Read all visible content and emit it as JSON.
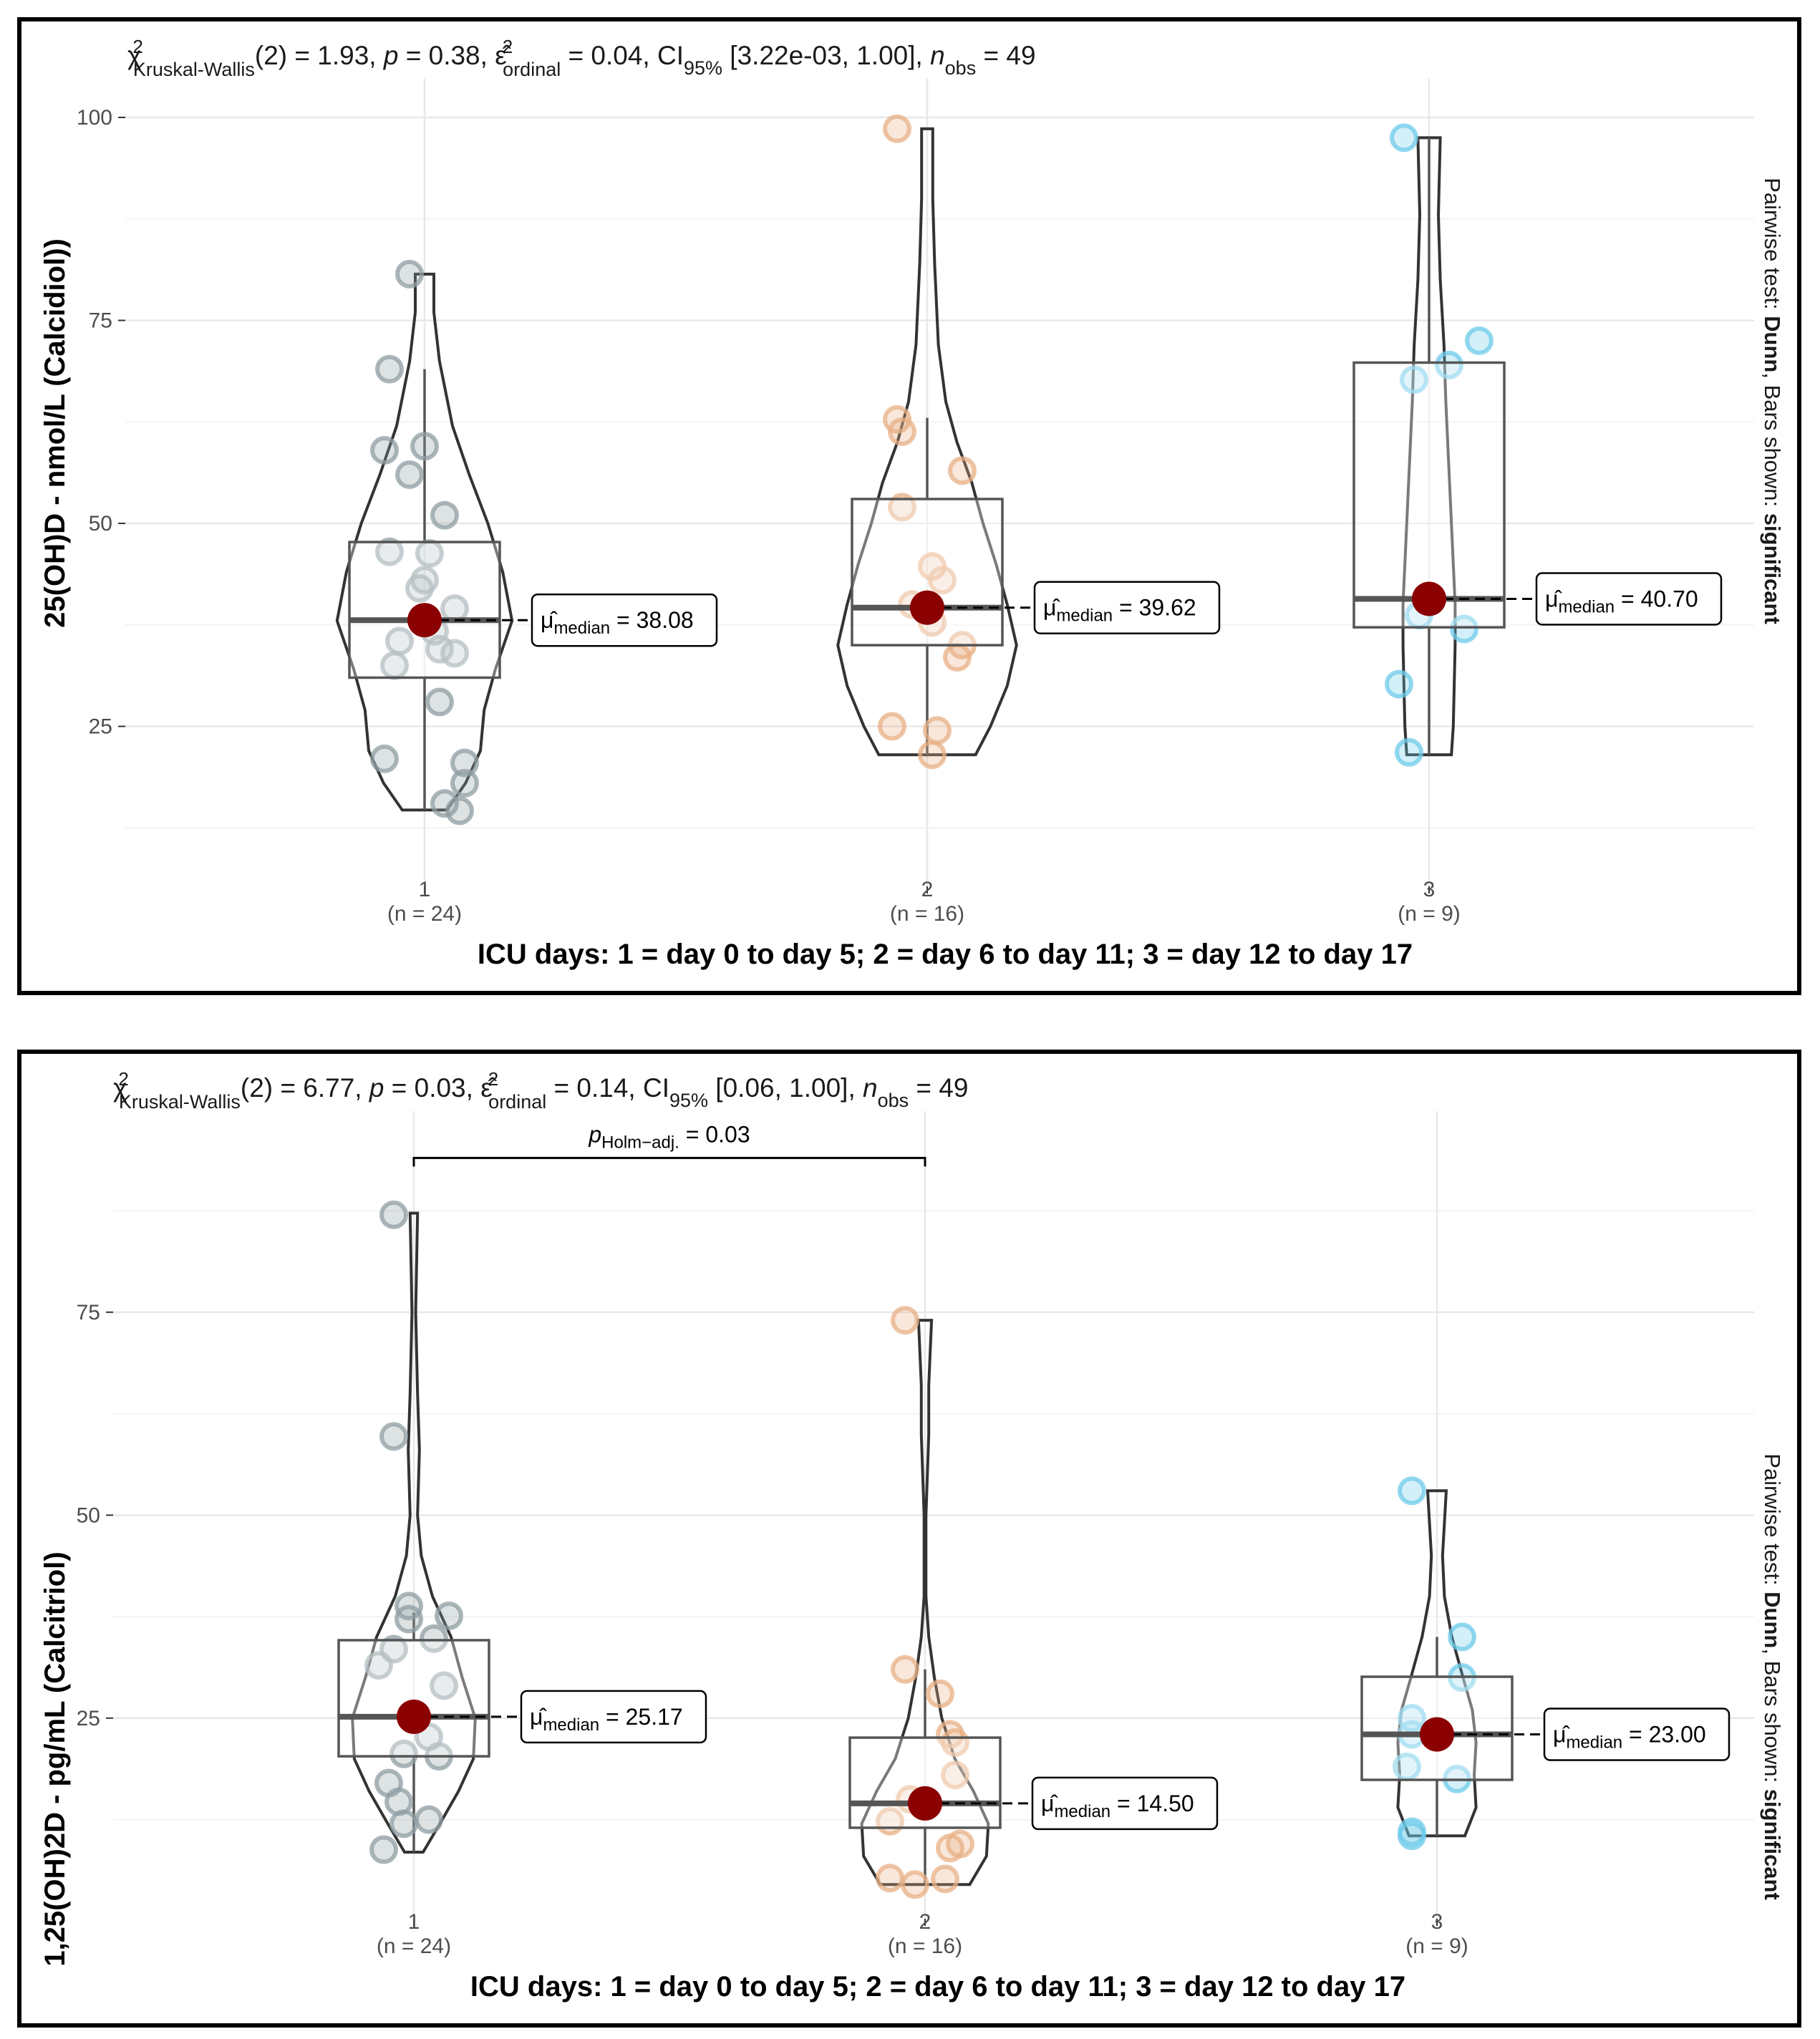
{
  "chart_data": [
    {
      "type": "violin-box",
      "subtitle": {
        "chi": "χ",
        "chi_sup": "2",
        "chi_sub": "Kruskal-Wallis",
        "stat": "(2) = 1.93, ",
        "p_sym": "p",
        "p_val": " = 0.38, ",
        "eps": "ε̂",
        "eps_sup": "2",
        "eps_sub": "ordinal",
        "eps_val": " = 0.04, CI",
        "ci_sub": "95%",
        "ci_val": " [3.22e-03, 1.00], ",
        "n_sym": "n",
        "n_sub": "obs",
        "n_val": " = 49"
      },
      "ylabel": "25(OH)D - nmol/L (Calcidiol))",
      "xlabel": "ICU days: 1 = day 0 to day 5; 2 = day 6 to day 11; 3 = day 12 to day 17",
      "caption": {
        "prefix": "Pairwise test: ",
        "test": "Dunn",
        "mid": ", Bars shown: ",
        "shown": "significant"
      },
      "ylim": [
        6,
        103
      ],
      "yticks": [
        25,
        50,
        75,
        100
      ],
      "ytick_labels": [
        "25",
        "50",
        "75",
        "100"
      ],
      "groups": [
        {
          "category": "1",
          "n_label": "(n = 24)",
          "color": "#8f9ea3",
          "median": 38.08,
          "q1": 31,
          "q3": 47.7,
          "whisker_low": 14.7,
          "whisker_high": 69,
          "min": 14.7,
          "max": 80.7,
          "median_label": "38.08",
          "label_mu": "μ̂",
          "label_sub": "median",
          "points": [
            [
              -0.03,
              80.7
            ],
            [
              -0.07,
              69
            ],
            [
              -0.08,
              59
            ],
            [
              0,
              59.5
            ],
            [
              -0.03,
              56
            ],
            [
              0.04,
              51
            ],
            [
              -0.07,
              46.5
            ],
            [
              0.01,
              46.3
            ],
            [
              0,
              43
            ],
            [
              -0.01,
              42
            ],
            [
              0.06,
              39.5
            ],
            [
              0.02,
              36.7
            ],
            [
              -0.05,
              35.5
            ],
            [
              0.03,
              34.5
            ],
            [
              0.06,
              34
            ],
            [
              -0.06,
              32.5
            ],
            [
              0.03,
              28
            ],
            [
              -0.08,
              21
            ],
            [
              0.08,
              20.5
            ],
            [
              0.08,
              18
            ],
            [
              0.04,
              15.5
            ],
            [
              0.07,
              14.6
            ]
          ],
          "violin": [
            [
              14.7,
              0.12
            ],
            [
              18,
              0.22
            ],
            [
              22,
              0.3
            ],
            [
              27,
              0.32
            ],
            [
              32,
              0.38
            ],
            [
              38,
              0.47
            ],
            [
              44,
              0.42
            ],
            [
              50,
              0.34
            ],
            [
              56,
              0.24
            ],
            [
              62,
              0.15
            ],
            [
              70,
              0.08
            ],
            [
              76,
              0.05
            ],
            [
              80.7,
              0.05
            ]
          ]
        },
        {
          "category": "2",
          "n_label": "(n = 16)",
          "color": "#e8b085",
          "median": 39.62,
          "q1": 35,
          "q3": 53,
          "whisker_low": 21.5,
          "whisker_high": 63,
          "min": 21.5,
          "max": 98.6,
          "median_label": "39.62",
          "label_mu": "μ̂",
          "label_sub": "median",
          "points": [
            [
              -0.06,
              98.6
            ],
            [
              -0.06,
              62.8
            ],
            [
              -0.05,
              61.3
            ],
            [
              0.07,
              56.5
            ],
            [
              -0.05,
              52
            ],
            [
              0.01,
              44.7
            ],
            [
              0.03,
              43
            ],
            [
              -0.03,
              40
            ],
            [
              0.01,
              37.8
            ],
            [
              0.07,
              35
            ],
            [
              0.06,
              33.5
            ],
            [
              -0.07,
              25
            ],
            [
              0.02,
              24.5
            ],
            [
              0.01,
              21.5
            ]
          ],
          "violin": [
            [
              21.5,
              0.26
            ],
            [
              25,
              0.34
            ],
            [
              30,
              0.43
            ],
            [
              35,
              0.48
            ],
            [
              40,
              0.43
            ],
            [
              45,
              0.37
            ],
            [
              50,
              0.3
            ],
            [
              55,
              0.24
            ],
            [
              60,
              0.16
            ],
            [
              65,
              0.1
            ],
            [
              72,
              0.06
            ],
            [
              82,
              0.04
            ],
            [
              90,
              0.03
            ],
            [
              98.6,
              0.03
            ]
          ]
        },
        {
          "category": "3",
          "n_label": "(n = 9)",
          "color": "#6ecbe9",
          "median": 40.7,
          "q1": 37.2,
          "q3": 69.8,
          "whisker_low": 21.5,
          "whisker_high": 97.5,
          "min": 21.5,
          "max": 97.5,
          "median_label": "40.70",
          "label_mu": "μ̂",
          "label_sub": "median",
          "points": [
            [
              -0.05,
              97.5
            ],
            [
              0.1,
              72.5
            ],
            [
              0.04,
              69.5
            ],
            [
              -0.03,
              67.7
            ],
            [
              -0.02,
              38.7
            ],
            [
              0.07,
              37
            ],
            [
              -0.06,
              30.2
            ],
            [
              -0.04,
              21.8
            ]
          ],
          "violin": [
            [
              21.5,
              0.12
            ],
            [
              25,
              0.13
            ],
            [
              30,
              0.135
            ],
            [
              35,
              0.14
            ],
            [
              40,
              0.14
            ],
            [
              45,
              0.13
            ],
            [
              50,
              0.12
            ],
            [
              55,
              0.11
            ],
            [
              60,
              0.1
            ],
            [
              65,
              0.09
            ],
            [
              72,
              0.08
            ],
            [
              80,
              0.06
            ],
            [
              88,
              0.05
            ],
            [
              97.5,
              0.06
            ]
          ]
        }
      ]
    },
    {
      "type": "violin-box",
      "subtitle": {
        "chi": "χ",
        "chi_sup": "2",
        "chi_sub": "Kruskal-Wallis",
        "stat": "(2) = 6.77, ",
        "p_sym": "p",
        "p_val": " = 0.03, ",
        "eps": "ε̂",
        "eps_sup": "2",
        "eps_sub": "ordinal",
        "eps_val": " = 0.14, CI",
        "ci_sub": "95%",
        "ci_val": " [0.06, 1.00], ",
        "n_sym": "n",
        "n_sub": "obs",
        "n_val": " = 49"
      },
      "ylabel": "1,25(OH)2D - pg/mL (Calcitriol)",
      "xlabel": "ICU days: 1 = day 0 to day 5; 2 = day 6 to day 11; 3 = day 12 to day 17",
      "caption": {
        "prefix": "Pairwise test: ",
        "test": "Dunn",
        "mid": ", Bars shown: ",
        "shown": "significant"
      },
      "ylim": [
        1,
        98
      ],
      "yticks": [
        25,
        50,
        75
      ],
      "ytick_labels": [
        "25",
        "50",
        "75"
      ],
      "significance": {
        "from": 1,
        "to": 2,
        "p_sym": "p",
        "p_sub": "Holm−adj.",
        "p_val": " = 0.03",
        "y_value": 94
      },
      "groups": [
        {
          "category": "1",
          "n_label": "(n = 24)",
          "color": "#8f9ea3",
          "median": 25.17,
          "q1": 20.3,
          "q3": 34.6,
          "whisker_low": 8.5,
          "whisker_high": 38,
          "min": 8.5,
          "max": 87.2,
          "median_label": "25.17",
          "label_mu": "μ̂",
          "label_sub": "median",
          "points": [
            [
              -0.04,
              87
            ],
            [
              -0.04,
              59.7
            ],
            [
              -0.01,
              38.8
            ],
            [
              0.07,
              37.6
            ],
            [
              -0.01,
              37.2
            ],
            [
              0.04,
              34.8
            ],
            [
              -0.04,
              33.5
            ],
            [
              -0.07,
              31.5
            ],
            [
              0.06,
              29
            ],
            [
              0,
              25.3
            ],
            [
              0.03,
              22.7
            ],
            [
              -0.02,
              20.6
            ],
            [
              0.05,
              20.3
            ],
            [
              -0.05,
              17
            ],
            [
              -0.03,
              14.7
            ],
            [
              0.03,
              12.5
            ],
            [
              -0.02,
              12
            ],
            [
              -0.06,
              8.8
            ]
          ],
          "violin": [
            [
              8.5,
              0.05
            ],
            [
              12,
              0.14
            ],
            [
              16,
              0.24
            ],
            [
              20,
              0.32
            ],
            [
              25,
              0.33
            ],
            [
              30,
              0.26
            ],
            [
              35,
              0.2
            ],
            [
              40,
              0.1
            ],
            [
              45,
              0.04
            ],
            [
              50,
              0.02
            ],
            [
              58,
              0.03
            ],
            [
              65,
              0.02
            ],
            [
              75,
              0.01
            ],
            [
              87.2,
              0.02
            ]
          ]
        },
        {
          "category": "2",
          "n_label": "(n = 16)",
          "color": "#e8b085",
          "median": 14.5,
          "q1": 11.5,
          "q3": 22.6,
          "whisker_low": 4.5,
          "whisker_high": 31,
          "min": 4.5,
          "max": 74,
          "median_label": "14.50",
          "label_mu": "μ̂",
          "label_sub": "median",
          "points": [
            [
              -0.04,
              74
            ],
            [
              -0.04,
              31
            ],
            [
              0.03,
              28
            ],
            [
              0.05,
              23
            ],
            [
              0.06,
              22
            ],
            [
              0.06,
              18
            ],
            [
              -0.03,
              15
            ],
            [
              -0.07,
              12.3
            ],
            [
              0.07,
              9.5
            ],
            [
              0.05,
              9
            ],
            [
              -0.07,
              5.3
            ],
            [
              -0.02,
              4.5
            ],
            [
              0.04,
              5.2
            ]
          ],
          "violin": [
            [
              4.5,
              0.24
            ],
            [
              8,
              0.33
            ],
            [
              12,
              0.34
            ],
            [
              16,
              0.26
            ],
            [
              20,
              0.16
            ],
            [
              25,
              0.09
            ],
            [
              30,
              0.05
            ],
            [
              35,
              0.02
            ],
            [
              40,
              0.005
            ],
            [
              50,
              0.005
            ],
            [
              60,
              0.02
            ],
            [
              66,
              0.02
            ],
            [
              74,
              0.035
            ]
          ]
        },
        {
          "category": "3",
          "n_label": "(n = 9)",
          "color": "#6ecbe9",
          "median": 23.0,
          "q1": 17.4,
          "q3": 30.1,
          "whisker_low": 10.5,
          "whisker_high": 35,
          "min": 10.5,
          "max": 53,
          "median_label": "23.00",
          "label_mu": "μ̂",
          "label_sub": "median",
          "points": [
            [
              -0.05,
              53
            ],
            [
              0.05,
              35
            ],
            [
              0.05,
              30
            ],
            [
              -0.05,
              25
            ],
            [
              -0.05,
              23
            ],
            [
              0.04,
              17.5
            ],
            [
              -0.06,
              19
            ],
            [
              -0.05,
              10.5
            ],
            [
              -0.05,
              11
            ]
          ],
          "violin": [
            [
              10.5,
              0.15
            ],
            [
              14,
              0.21
            ],
            [
              18,
              0.2
            ],
            [
              22,
              0.21
            ],
            [
              26,
              0.19
            ],
            [
              30,
              0.14
            ],
            [
              35,
              0.08
            ],
            [
              40,
              0.04
            ],
            [
              45,
              0.03
            ],
            [
              49,
              0.04
            ],
            [
              53,
              0.05
            ]
          ]
        }
      ]
    }
  ]
}
